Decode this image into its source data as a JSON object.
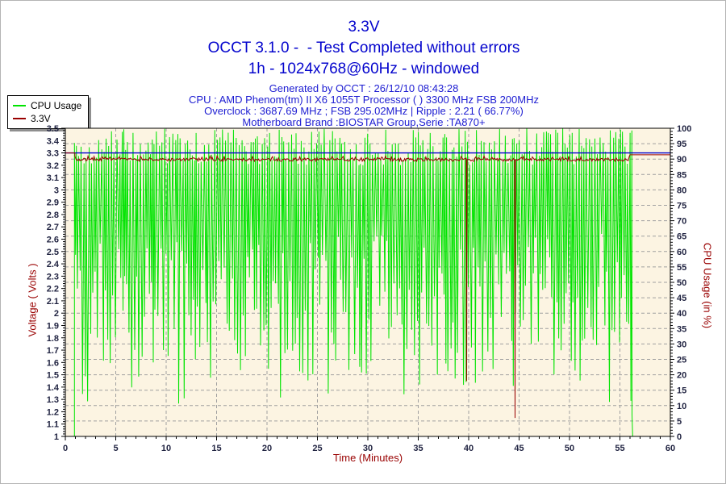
{
  "header": {
    "title": "3.3V",
    "subtitle": "OCCT 3.1.0 -  - Test Completed without errors",
    "mode_line": "1h - 1024x768@60Hz - windowed",
    "generated": "Generated by OCCT : 26/12/10 08:43:28",
    "cpu_line": "CPU : AMD Phenom(tm) II X6 1055T Processor ( ) 3300 MHz FSB 200MHz",
    "overclock_line": "Overclock : 3687.69 MHz ; FSB 295.02MHz | Ripple : 2.21 ( 66.77%)",
    "motherboard_line": "Motherboard Brand :BIOSTAR Group,Serie :TA870+",
    "title_color": "#0404cd"
  },
  "legend": {
    "position": "top-left",
    "items": [
      {
        "label": "CPU Usage",
        "color": "#00e400"
      },
      {
        "label": "3.3V",
        "color": "#990000"
      }
    ]
  },
  "chart_data": {
    "type": "line",
    "title": "3.3V",
    "x": {
      "label": "Time (Minutes)",
      "min": 0,
      "max": 60,
      "tick_step": 5,
      "minor_step": 1
    },
    "y_left": {
      "label": "Voltage ( Volts )",
      "min": 1,
      "max": 3.5,
      "tick_step": 0.1
    },
    "y_right": {
      "label": "CPU Usage (in %)",
      "min": 0,
      "max": 100,
      "tick_step": 5,
      "minor_step": 1
    },
    "grid": {
      "color": "#a0a0a0",
      "dash": "4 3",
      "horizontal_follows": "right-axis"
    },
    "plot_bg": "#fcf4e2",
    "plot_border": "#000000",
    "legend_position": "top-left",
    "series": [
      {
        "name": "CPU Usage",
        "axis": "right",
        "color": "#00e400",
        "type": "noisy-oscillation",
        "seed": 42,
        "ramp_up_t": 0.9,
        "end_t": 56.2,
        "step_minutes": 0.12,
        "high_range": [
          88,
          100
        ],
        "low_range": [
          18,
          66
        ],
        "summary": "0% until ~0.9 min, then rapid sawtooth oscillation between ~20-65% lows and ~90-100% highs for the whole test, drops back to 0% at ~56.2 min and ends"
      },
      {
        "name": "3.3V",
        "axis": "left",
        "color": "#990000",
        "type": "noisy-line",
        "seed": 7,
        "idle_value": 3.3,
        "load_start_t": 0.95,
        "load_end_t": 56.0,
        "load_mean": 3.245,
        "noise": 0.013,
        "blip_value": 0.03,
        "post_value": 3.285,
        "anomalies": [
          {
            "t": 39.8,
            "v": 1.45
          },
          {
            "t": 44.6,
            "v": 1.15
          }
        ],
        "summary": "~3.30V idle, ~3.24-3.27V ripple under load, sharp dips to 1.45V at ~39.8 min and 1.15V at ~44.6 min, flat ~3.28V after test end"
      },
      {
        "name": "3.3V nominal line",
        "axis": "left",
        "color": "#0000cd",
        "type": "constant",
        "value": 3.3,
        "summary": "flat blue reference line at 3.30V across the full 0-60 min range"
      }
    ]
  }
}
